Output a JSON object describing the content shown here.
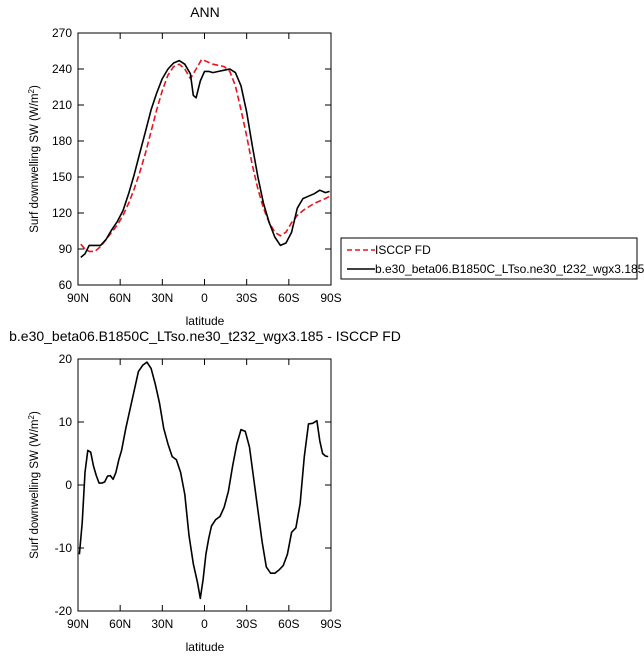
{
  "chart_data": [
    {
      "type": "line",
      "title": "ANN",
      "xlabel": "latitude",
      "ylabel_main": "Surf downwelling SW (W/m",
      "ylabel_sup": "2",
      "ylabel_close": ")",
      "xlim": [
        90,
        -90
      ],
      "ylim": [
        60,
        270
      ],
      "xticks": [
        90,
        60,
        30,
        0,
        -30,
        -60,
        -90
      ],
      "xtick_labels": [
        "90N",
        "60N",
        "30N",
        "0",
        "30S",
        "60S",
        "90S"
      ],
      "yticks": [
        60,
        90,
        120,
        150,
        180,
        210,
        240,
        270
      ],
      "ytick_labels": [
        "60",
        "90",
        "120",
        "150",
        "180",
        "210",
        "240",
        "270"
      ],
      "legend_position": "right",
      "series": [
        {
          "name": "ISCCP FD",
          "color": "#e8141b",
          "dash": "dashed",
          "x": [
            88,
            85,
            82,
            78,
            74,
            70,
            66,
            62,
            58,
            54,
            50,
            46,
            42,
            38,
            34,
            30,
            26,
            22,
            18,
            14,
            10,
            6,
            2,
            -2,
            -6,
            -10,
            -14,
            -18,
            -22,
            -26,
            -30,
            -34,
            -38,
            -42,
            -46,
            -50,
            -54,
            -58,
            -62,
            -66,
            -70,
            -74,
            -78,
            -82,
            -86,
            -89
          ],
          "y": [
            94,
            90,
            88,
            88,
            92,
            98,
            104,
            110,
            118,
            128,
            140,
            154,
            170,
            188,
            206,
            222,
            235,
            242,
            244,
            240,
            232,
            240,
            248,
            246,
            244,
            243,
            242,
            238,
            226,
            206,
            184,
            160,
            140,
            124,
            112,
            104,
            101,
            104,
            112,
            118,
            122,
            125,
            128,
            130,
            132,
            134
          ]
        },
        {
          "name": "b.e30_beta06.B1850C_LTso.ne30_t232_wgx3.185",
          "color": "#000000",
          "dash": "solid",
          "x": [
            88,
            85,
            82,
            78,
            74,
            70,
            66,
            62,
            58,
            54,
            50,
            46,
            42,
            38,
            34,
            30,
            26,
            22,
            18,
            14,
            10,
            8,
            6,
            3,
            0,
            -3,
            -6,
            -10,
            -14,
            -18,
            -22,
            -26,
            -30,
            -34,
            -38,
            -42,
            -46,
            -50,
            -54,
            -58,
            -62,
            -66,
            -70,
            -74,
            -78,
            -82,
            -86,
            -89
          ],
          "y": [
            83,
            86,
            93,
            93,
            93,
            98,
            106,
            113,
            122,
            136,
            152,
            170,
            188,
            206,
            220,
            232,
            240,
            245,
            247,
            244,
            236,
            218,
            216,
            230,
            238,
            238,
            237,
            238,
            239,
            240,
            237,
            226,
            204,
            176,
            150,
            128,
            112,
            100,
            93,
            95,
            104,
            124,
            132,
            134,
            136,
            139,
            137,
            138
          ]
        }
      ]
    },
    {
      "type": "line",
      "title": "b.e30_beta06.B1850C_LTso.ne30_t232_wgx3.185 - ISCCP FD",
      "xlabel": "latitude",
      "ylabel_main": "Surf downwelling SW (W/m",
      "ylabel_sup": "2",
      "ylabel_close": ")",
      "xlim": [
        90,
        -90
      ],
      "ylim": [
        -20,
        20
      ],
      "xticks": [
        90,
        60,
        30,
        0,
        -30,
        -60,
        -90
      ],
      "xtick_labels": [
        "90N",
        "60N",
        "30N",
        "0",
        "30S",
        "60S",
        "90S"
      ],
      "yticks": [
        -20,
        -10,
        0,
        10,
        20
      ],
      "ytick_labels": [
        "-20",
        "-10",
        "0",
        "10",
        "20"
      ],
      "series": [
        {
          "color": "#000000",
          "dash": "solid",
          "x": [
            89,
            87,
            85,
            83,
            81,
            79,
            77,
            75,
            73,
            71,
            69,
            67,
            65,
            63,
            61,
            59,
            56,
            53,
            50,
            47,
            44,
            41,
            38,
            35,
            32,
            29,
            26,
            23,
            20,
            17,
            14,
            11,
            8,
            5,
            3,
            1,
            -1,
            -3,
            -5,
            -8,
            -11,
            -14,
            -17,
            -20,
            -23,
            -26,
            -29,
            -32,
            -35,
            -38,
            -41,
            -44,
            -47,
            -50,
            -53,
            -56,
            -59,
            -62,
            -65,
            -68,
            -71,
            -74,
            -77,
            -80,
            -82,
            -84,
            -86,
            -88
          ],
          "y": [
            -11,
            -6,
            2,
            5.5,
            5.2,
            3,
            1.5,
            0.3,
            0.3,
            0.5,
            1.4,
            1.5,
            0.9,
            2,
            4,
            5.5,
            9,
            12,
            15,
            18,
            19,
            19.5,
            18.5,
            16,
            13,
            9,
            6.5,
            4.5,
            4,
            2,
            -1.5,
            -8,
            -12.5,
            -15.5,
            -18,
            -15,
            -11,
            -8.5,
            -6.5,
            -5.5,
            -5,
            -3.5,
            -1,
            3,
            6.5,
            8.8,
            8.5,
            6,
            1,
            -4,
            -9,
            -13,
            -14,
            -14,
            -13.5,
            -12.8,
            -11,
            -7.5,
            -6.8,
            -3,
            4.5,
            9.7,
            9.8,
            10.2,
            7,
            5,
            4.6,
            4.5
          ]
        }
      ]
    }
  ]
}
